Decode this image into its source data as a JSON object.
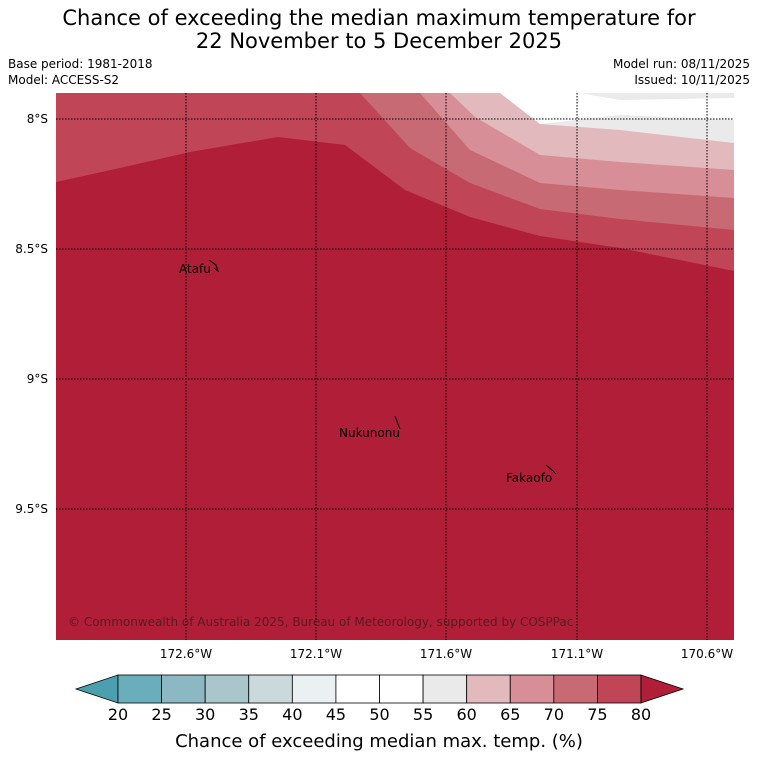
{
  "header": {
    "title_line1": "Chance of exceeding the median maximum temperature for",
    "title_line2": "22 November to 5 December 2025",
    "base_period": "Base period: 1981-2018",
    "model": "Model: ACCESS-S2",
    "model_run": "Model run: 08/11/2025",
    "issued": "Issued: 10/11/2025"
  },
  "map": {
    "lat_ticks": [
      "8°S",
      "8.5°S",
      "9°S",
      "9.5°S"
    ],
    "lon_ticks": [
      "172.6°W",
      "172.1°W",
      "171.6°W",
      "171.1°W",
      "170.6°W"
    ],
    "places": [
      {
        "name": "Atafu"
      },
      {
        "name": "Nukunonu"
      },
      {
        "name": "Fakaofo"
      }
    ],
    "copyright": "© Commonwealth of Australia 2025, Bureau of Meteorology, supported by COSPPac"
  },
  "legend": {
    "title": "Chance of exceeding median max. temp. (%)",
    "labels": [
      "20",
      "25",
      "30",
      "35",
      "40",
      "45",
      "50",
      "55",
      "60",
      "65",
      "70",
      "75",
      "80"
    ],
    "colors": [
      "#6aaebb",
      "#8bb8c2",
      "#a9c7cb",
      "#ccd9dc",
      "#ebf0f2",
      "#ffffff",
      "#ffffff",
      "#ebeaeb",
      "#e2b9bd",
      "#d78e96",
      "#c86a74",
      "#c04556",
      "#b11e38"
    ],
    "under_color": "#4b9fae",
    "over_color": "#b11e38"
  }
}
